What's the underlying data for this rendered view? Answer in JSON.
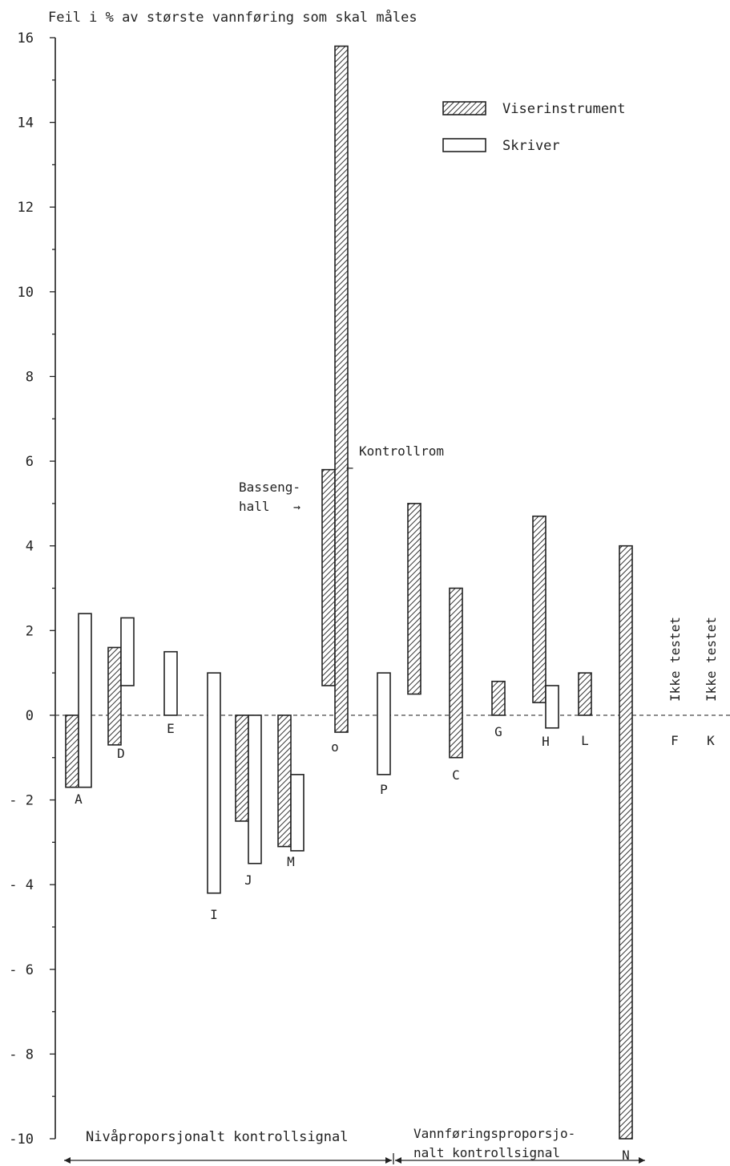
{
  "chart_data": {
    "type": "bar",
    "title": "Feil i % av største vannføring som skal måles",
    "ylabel": "",
    "xlabel": "",
    "ylim": [
      -10,
      16
    ],
    "y_ticks": [
      16,
      14,
      12,
      10,
      8,
      6,
      4,
      2,
      0,
      -2,
      -4,
      -6,
      -8,
      -10
    ],
    "y_tick_labels": [
      "16",
      "14",
      "12",
      "10",
      "8",
      "6",
      "4",
      "2",
      "0",
      "- 2",
      "- 4",
      "- 6",
      "- 8",
      "-10"
    ],
    "bar_style": "floating ranges (min to max)",
    "legend": {
      "placement": "top-right",
      "entries": [
        {
          "series": "viserinstrument",
          "label": "Viserinstrument",
          "pattern": "hatched"
        },
        {
          "series": "skriver",
          "label": "Skriver",
          "pattern": "open"
        }
      ]
    },
    "groups": [
      {
        "label": "A",
        "bars": [
          {
            "series": "viserinstrument",
            "min": -1.7,
            "max": 0.0
          },
          {
            "series": "skriver",
            "min": -1.7,
            "max": 2.4
          }
        ]
      },
      {
        "label": "D",
        "bars": [
          {
            "series": "viserinstrument",
            "min": -0.7,
            "max": 1.6
          },
          {
            "series": "skriver",
            "min": 0.7,
            "max": 2.3
          }
        ]
      },
      {
        "label": "E",
        "bars": [
          {
            "series": "skriver",
            "min": 0.0,
            "max": 1.5
          }
        ]
      },
      {
        "label": "I",
        "bars": [
          {
            "series": "skriver",
            "min": -4.2,
            "max": 1.0
          }
        ]
      },
      {
        "label": "J",
        "bars": [
          {
            "series": "viserinstrument",
            "min": -2.5,
            "max": 0.0
          },
          {
            "series": "skriver",
            "min": -3.5,
            "max": 0.0
          }
        ]
      },
      {
        "label": "M",
        "bars": [
          {
            "series": "viserinstrument",
            "min": -3.1,
            "max": 0.0
          },
          {
            "series": "skriver",
            "min": -3.2,
            "max": -1.4
          }
        ]
      },
      {
        "label": "o",
        "bars": [
          {
            "series": "viserinstrument",
            "min": 0.7,
            "max": 5.8,
            "note": "Basseng-hall"
          },
          {
            "series": "viserinstrument",
            "min": -0.4,
            "max": 15.8,
            "note": "Kontrollrom"
          }
        ]
      },
      {
        "label": "P",
        "bars": [
          {
            "series": "skriver",
            "min": -1.4,
            "max": 1.0
          }
        ]
      },
      {
        "label": "",
        "bars": [
          {
            "series": "viserinstrument",
            "min": 0.5,
            "max": 5.0
          }
        ]
      },
      {
        "label": "C",
        "bars": [
          {
            "series": "viserinstrument",
            "min": -1.0,
            "max": 3.0
          }
        ]
      },
      {
        "label": "G",
        "bars": [
          {
            "series": "viserinstrument",
            "min": 0.0,
            "max": 0.8
          }
        ]
      },
      {
        "label": "H",
        "bars": [
          {
            "series": "viserinstrument",
            "min": 0.3,
            "max": 4.7
          },
          {
            "series": "skriver",
            "min": -0.3,
            "max": 0.7
          }
        ]
      },
      {
        "label": "L",
        "bars": [
          {
            "series": "viserinstrument",
            "min": 0.0,
            "max": 1.0
          }
        ]
      },
      {
        "label": "N",
        "bars": [
          {
            "series": "viserinstrument",
            "min": -10.0,
            "max": 4.0
          }
        ]
      },
      {
        "label": "F",
        "bars": [],
        "status": "Ikke testet"
      },
      {
        "label": "K",
        "bars": [],
        "status": "Ikke testet"
      }
    ],
    "annotations": [
      {
        "name": "basseng",
        "lines": [
          "Basseng-",
          "hall"
        ],
        "arrow": "→"
      },
      {
        "name": "kontrollrom",
        "text": "Kontrollrom",
        "arrow": "←"
      }
    ],
    "sections": [
      {
        "label": "Nivåproporsjonalt kontrollsignal"
      },
      {
        "lines": [
          "Vannføringsproporsjo-",
          "nalt kontrollsignal"
        ]
      }
    ],
    "grid": false,
    "zero_line": "dashed"
  }
}
